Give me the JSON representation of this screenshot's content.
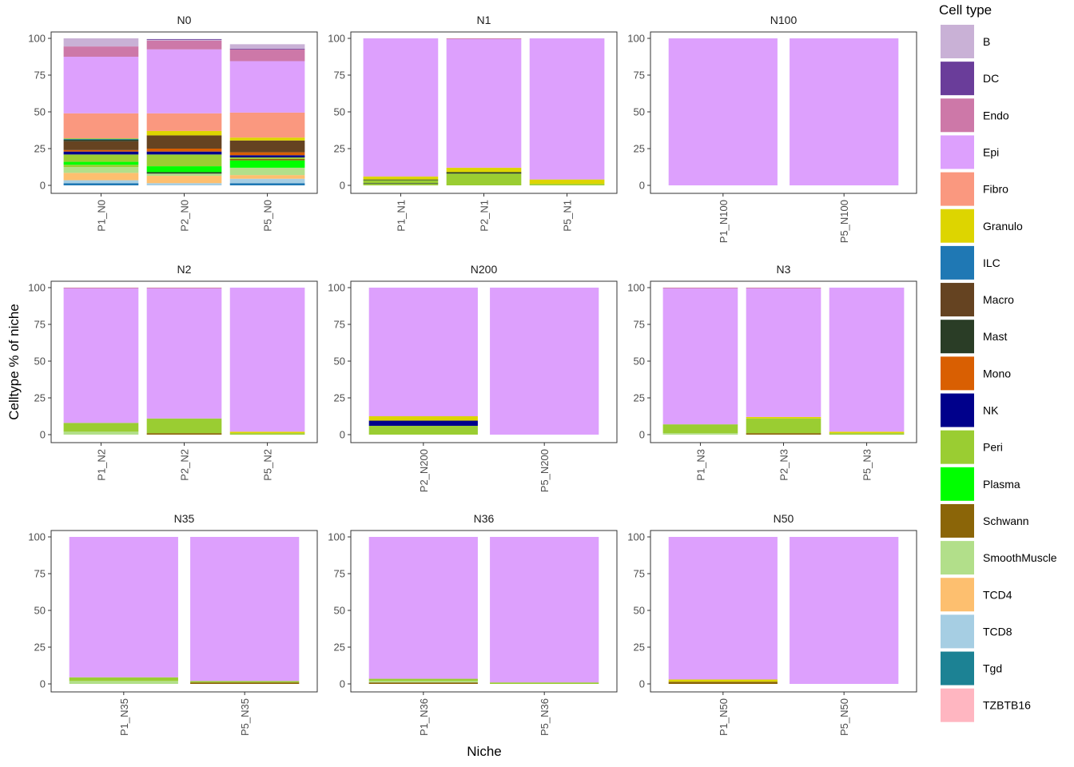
{
  "chart_data": {
    "type": "bar",
    "stacked": true,
    "facet_layout": "3x3 grid",
    "ylabel": "Celltype % of niche",
    "xlabel": "Niche",
    "ylim": [
      0,
      100
    ],
    "yticks": [
      0,
      25,
      50,
      75,
      100
    ],
    "grid": false,
    "legend": {
      "title": "Cell type",
      "position": "right",
      "items": [
        {
          "name": "B",
          "color": "#c9b1d6"
        },
        {
          "name": "DC",
          "color": "#6a3d9a"
        },
        {
          "name": "Endo",
          "color": "#cd78a8"
        },
        {
          "name": "Epi",
          "color": "#dda0fd"
        },
        {
          "name": "Fibro",
          "color": "#fa987f"
        },
        {
          "name": "Granulo",
          "color": "#ddd500"
        },
        {
          "name": "ILC",
          "color": "#1f78b4"
        },
        {
          "name": "Macro",
          "color": "#654321"
        },
        {
          "name": "Mast",
          "color": "#2a3d26"
        },
        {
          "name": "Mono",
          "color": "#d95f02"
        },
        {
          "name": "NK",
          "color": "#00008b"
        },
        {
          "name": "Peri",
          "color": "#9acd32"
        },
        {
          "name": "Plasma",
          "color": "#00ff00"
        },
        {
          "name": "Schwann",
          "color": "#8b6508"
        },
        {
          "name": "SmoothMuscle",
          "color": "#b2df8a"
        },
        {
          "name": "TCD4",
          "color": "#fdbf6f"
        },
        {
          "name": "TCD8",
          "color": "#a6cee3"
        },
        {
          "name": "Tgd",
          "color": "#1c8294"
        },
        {
          "name": "TZBTB16",
          "color": "#ffb6c1"
        }
      ]
    },
    "panels": [
      {
        "title": "N0",
        "bars": [
          {
            "label": "P1_N0",
            "segments": [
              {
                "type": "ILC",
                "value": 1.5
              },
              {
                "type": "TCD8",
                "value": 2
              },
              {
                "type": "TCD4",
                "value": 5
              },
              {
                "type": "SmoothMuscle",
                "value": 4
              },
              {
                "type": "Peri",
                "value": 1.5
              },
              {
                "type": "Plasma",
                "value": 2
              },
              {
                "type": "Peri",
                "value": 5
              },
              {
                "type": "NK",
                "value": 2
              },
              {
                "type": "Mono",
                "value": 1
              },
              {
                "type": "Macro",
                "value": 6
              },
              {
                "type": "Mast",
                "value": 1
              },
              {
                "type": "Tgd",
                "value": 0.5
              },
              {
                "type": "Peri",
                "value": 0.5
              },
              {
                "type": "Fibro",
                "value": 17
              },
              {
                "type": "Epi",
                "value": 38.5
              },
              {
                "type": "Endo",
                "value": 7
              },
              {
                "type": "B",
                "value": 5.5
              }
            ]
          },
          {
            "label": "P2_N0",
            "segments": [
              {
                "type": "TCD8",
                "value": 1.5
              },
              {
                "type": "TCD4",
                "value": 5
              },
              {
                "type": "SmoothMuscle",
                "value": 1.5
              },
              {
                "type": "Mast",
                "value": 1
              },
              {
                "type": "Plasma",
                "value": 4
              },
              {
                "type": "Peri",
                "value": 8
              },
              {
                "type": "NK",
                "value": 2
              },
              {
                "type": "Mono",
                "value": 2
              },
              {
                "type": "Macro",
                "value": 9
              },
              {
                "type": "Granulo",
                "value": 3
              },
              {
                "type": "Fibro",
                "value": 12
              },
              {
                "type": "Epi",
                "value": 43.5
              },
              {
                "type": "Endo",
                "value": 6
              },
              {
                "type": "B",
                "value": 0.5
              },
              {
                "type": "DC",
                "value": 0.5
              }
            ]
          },
          {
            "label": "P5_N0",
            "segments": [
              {
                "type": "ILC",
                "value": 1.5
              },
              {
                "type": "TCD8",
                "value": 3
              },
              {
                "type": "TCD4",
                "value": 2.5
              },
              {
                "type": "SmoothMuscle",
                "value": 5
              },
              {
                "type": "Plasma",
                "value": 5
              },
              {
                "type": "Schwann",
                "value": 1
              },
              {
                "type": "Peri",
                "value": 1
              },
              {
                "type": "NK",
                "value": 1.5
              },
              {
                "type": "Mono",
                "value": 2
              },
              {
                "type": "Macro",
                "value": 8
              },
              {
                "type": "Granulo",
                "value": 2
              },
              {
                "type": "Fibro",
                "value": 17
              },
              {
                "type": "Epi",
                "value": 35
              },
              {
                "type": "Endo",
                "value": 8
              },
              {
                "type": "DC",
                "value": 0.5
              },
              {
                "type": "B",
                "value": 3
              }
            ]
          }
        ]
      },
      {
        "title": "N1",
        "bars": [
          {
            "label": "P1_N1",
            "segments": [
              {
                "type": "Peri",
                "value": 1
              },
              {
                "type": "Mast",
                "value": 0.5
              },
              {
                "type": "Peri",
                "value": 2
              },
              {
                "type": "Mast",
                "value": 0.5
              },
              {
                "type": "Granulo",
                "value": 2
              },
              {
                "type": "Epi",
                "value": 94
              }
            ]
          },
          {
            "label": "P2_N1",
            "segments": [
              {
                "type": "Peri",
                "value": 8
              },
              {
                "type": "Mast",
                "value": 1
              },
              {
                "type": "Granulo",
                "value": 3
              },
              {
                "type": "Epi",
                "value": 87.5
              },
              {
                "type": "Endo",
                "value": 0.5
              }
            ]
          },
          {
            "label": "P5_N1",
            "segments": [
              {
                "type": "Peri",
                "value": 1
              },
              {
                "type": "Granulo",
                "value": 3
              },
              {
                "type": "Epi",
                "value": 96
              }
            ]
          }
        ]
      },
      {
        "title": "N100",
        "bars": [
          {
            "label": "P1_N100",
            "segments": [
              {
                "type": "Epi",
                "value": 100
              }
            ]
          },
          {
            "label": "P5_N100",
            "segments": [
              {
                "type": "Epi",
                "value": 100
              }
            ]
          }
        ]
      },
      {
        "title": "N2",
        "bars": [
          {
            "label": "P1_N2",
            "segments": [
              {
                "type": "SmoothMuscle",
                "value": 2
              },
              {
                "type": "Peri",
                "value": 6
              },
              {
                "type": "Epi",
                "value": 91.5
              },
              {
                "type": "Endo",
                "value": 0.5
              }
            ]
          },
          {
            "label": "P2_N2",
            "segments": [
              {
                "type": "Schwann",
                "value": 1
              },
              {
                "type": "Peri",
                "value": 10
              },
              {
                "type": "Epi",
                "value": 88.5
              },
              {
                "type": "Endo",
                "value": 0.5
              }
            ]
          },
          {
            "label": "P5_N2",
            "segments": [
              {
                "type": "Peri",
                "value": 1
              },
              {
                "type": "Granulo",
                "value": 1
              },
              {
                "type": "Epi",
                "value": 98
              }
            ]
          }
        ]
      },
      {
        "title": "N200",
        "bars": [
          {
            "label": "P2_N200",
            "segments": [
              {
                "type": "Peri",
                "value": 6
              },
              {
                "type": "NK",
                "value": 3.5
              },
              {
                "type": "Granulo",
                "value": 3
              },
              {
                "type": "Epi",
                "value": 87.5
              }
            ]
          },
          {
            "label": "P5_N200",
            "segments": [
              {
                "type": "Epi",
                "value": 100
              }
            ]
          }
        ]
      },
      {
        "title": "N3",
        "bars": [
          {
            "label": "P1_N3",
            "segments": [
              {
                "type": "SmoothMuscle",
                "value": 1
              },
              {
                "type": "Peri",
                "value": 6
              },
              {
                "type": "Epi",
                "value": 92.5
              },
              {
                "type": "Endo",
                "value": 0.5
              }
            ]
          },
          {
            "label": "P2_N3",
            "segments": [
              {
                "type": "Schwann",
                "value": 1
              },
              {
                "type": "Peri",
                "value": 10
              },
              {
                "type": "Granulo",
                "value": 1
              },
              {
                "type": "Epi",
                "value": 87.5
              },
              {
                "type": "Endo",
                "value": 0.5
              }
            ]
          },
          {
            "label": "P5_N3",
            "segments": [
              {
                "type": "Peri",
                "value": 1
              },
              {
                "type": "Granulo",
                "value": 1
              },
              {
                "type": "Epi",
                "value": 98
              }
            ]
          }
        ]
      },
      {
        "title": "N35",
        "bars": [
          {
            "label": "P1_N35",
            "segments": [
              {
                "type": "SmoothMuscle",
                "value": 2
              },
              {
                "type": "Peri",
                "value": 2.5
              },
              {
                "type": "Epi",
                "value": 95.5
              }
            ]
          },
          {
            "label": "P5_N35",
            "segments": [
              {
                "type": "Schwann",
                "value": 1
              },
              {
                "type": "Peri",
                "value": 1
              },
              {
                "type": "Epi",
                "value": 98
              }
            ]
          }
        ]
      },
      {
        "title": "N36",
        "bars": [
          {
            "label": "P1_N36",
            "segments": [
              {
                "type": "Schwann",
                "value": 1
              },
              {
                "type": "SmoothMuscle",
                "value": 1
              },
              {
                "type": "Peri",
                "value": 1.5
              },
              {
                "type": "Epi",
                "value": 96.5
              }
            ]
          },
          {
            "label": "P5_N36",
            "segments": [
              {
                "type": "Peri",
                "value": 1
              },
              {
                "type": "Epi",
                "value": 99
              }
            ]
          }
        ]
      },
      {
        "title": "N50",
        "bars": [
          {
            "label": "P1_N50",
            "segments": [
              {
                "type": "Schwann",
                "value": 1.5
              },
              {
                "type": "Granulo",
                "value": 1.5
              },
              {
                "type": "Epi",
                "value": 97
              }
            ]
          },
          {
            "label": "P5_N50",
            "segments": [
              {
                "type": "Epi",
                "value": 100
              }
            ]
          }
        ]
      }
    ]
  }
}
